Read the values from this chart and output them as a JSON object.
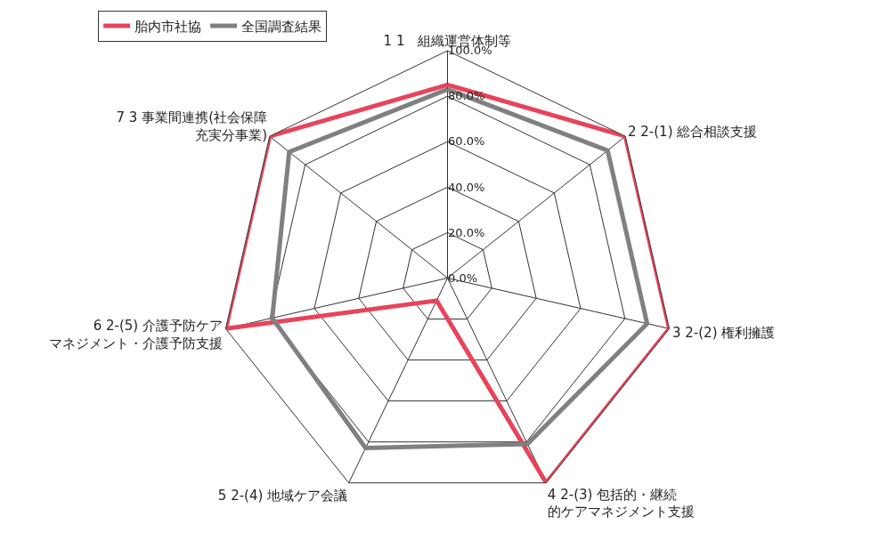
{
  "chart_data": {
    "type": "radar",
    "categories": [
      "1 1　組織運営体制等",
      "2 2-(1) 総合相談支援",
      "3 2-(2) 権利擁護",
      "4 2-(3) 包括的・継続的ケアマネジメント支援",
      "5 2-(4) 地域ケア会議",
      "6 2-(5) 介護予防ケアマネジメント・介護予防支援",
      "7 3 事業間連携(社会保障充実分事業)"
    ],
    "series": [
      {
        "name": "胎内市社協",
        "color": "#e8435a",
        "values": [
          85,
          100,
          100,
          100,
          11,
          100,
          100
        ]
      },
      {
        "name": "全国調査結果",
        "color": "#808080",
        "values": [
          83,
          90,
          90,
          81,
          83,
          79,
          89
        ]
      }
    ],
    "ylim": [
      0,
      100
    ],
    "yticks": [
      {
        "value": 0,
        "label": "0.0%"
      },
      {
        "value": 20,
        "label": "20.0%"
      },
      {
        "value": 40,
        "label": "40.0%"
      },
      {
        "value": 60,
        "label": "60.0%"
      },
      {
        "value": 80,
        "label": "80.0%"
      },
      {
        "value": 100,
        "label": "100.0%"
      }
    ],
    "legend": "top left",
    "marker": "none",
    "line_style": "solid"
  }
}
